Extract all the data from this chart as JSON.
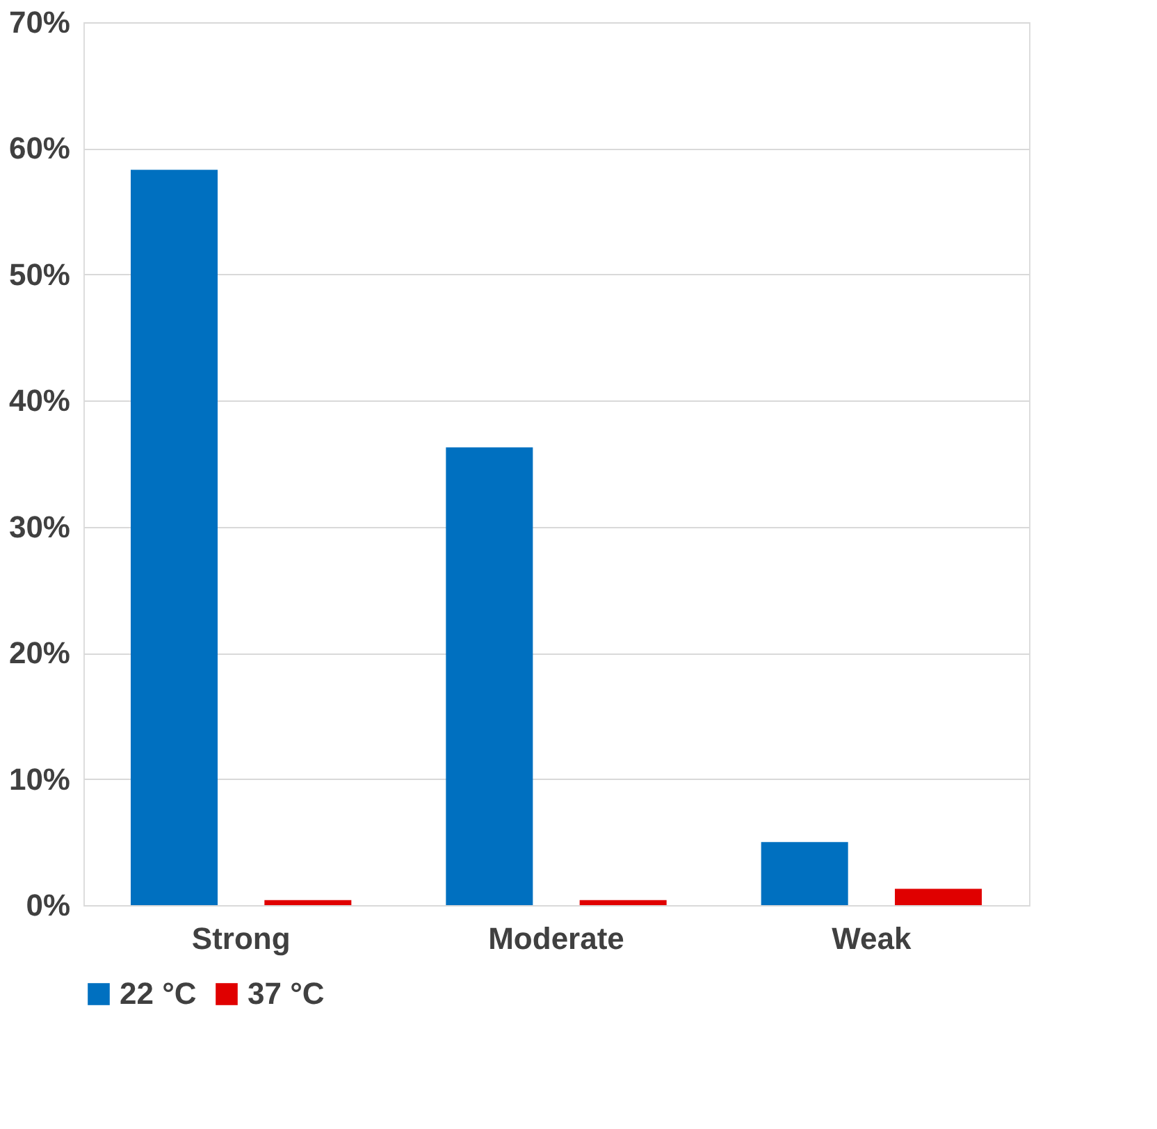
{
  "chart_data": {
    "type": "bar",
    "categories": [
      "Strong",
      "Moderate",
      "Weak"
    ],
    "series": [
      {
        "name": "22 °C",
        "color": "#0070c0",
        "values": [
          58.3,
          36.3,
          5.0
        ]
      },
      {
        "name": "37 °C",
        "color": "#e00000",
        "values": [
          0.4,
          0.4,
          1.3
        ]
      }
    ],
    "ylim": [
      0,
      70
    ],
    "yticks": [
      {
        "value": 0,
        "label": "0%"
      },
      {
        "value": 10,
        "label": "10%"
      },
      {
        "value": 20,
        "label": "20%"
      },
      {
        "value": 30,
        "label": "30%"
      },
      {
        "value": 40,
        "label": "40%"
      },
      {
        "value": 50,
        "label": "50%"
      },
      {
        "value": 60,
        "label": "60%"
      },
      {
        "value": 70,
        "label": "70%"
      }
    ],
    "grid": "y",
    "legend": "bottom"
  }
}
